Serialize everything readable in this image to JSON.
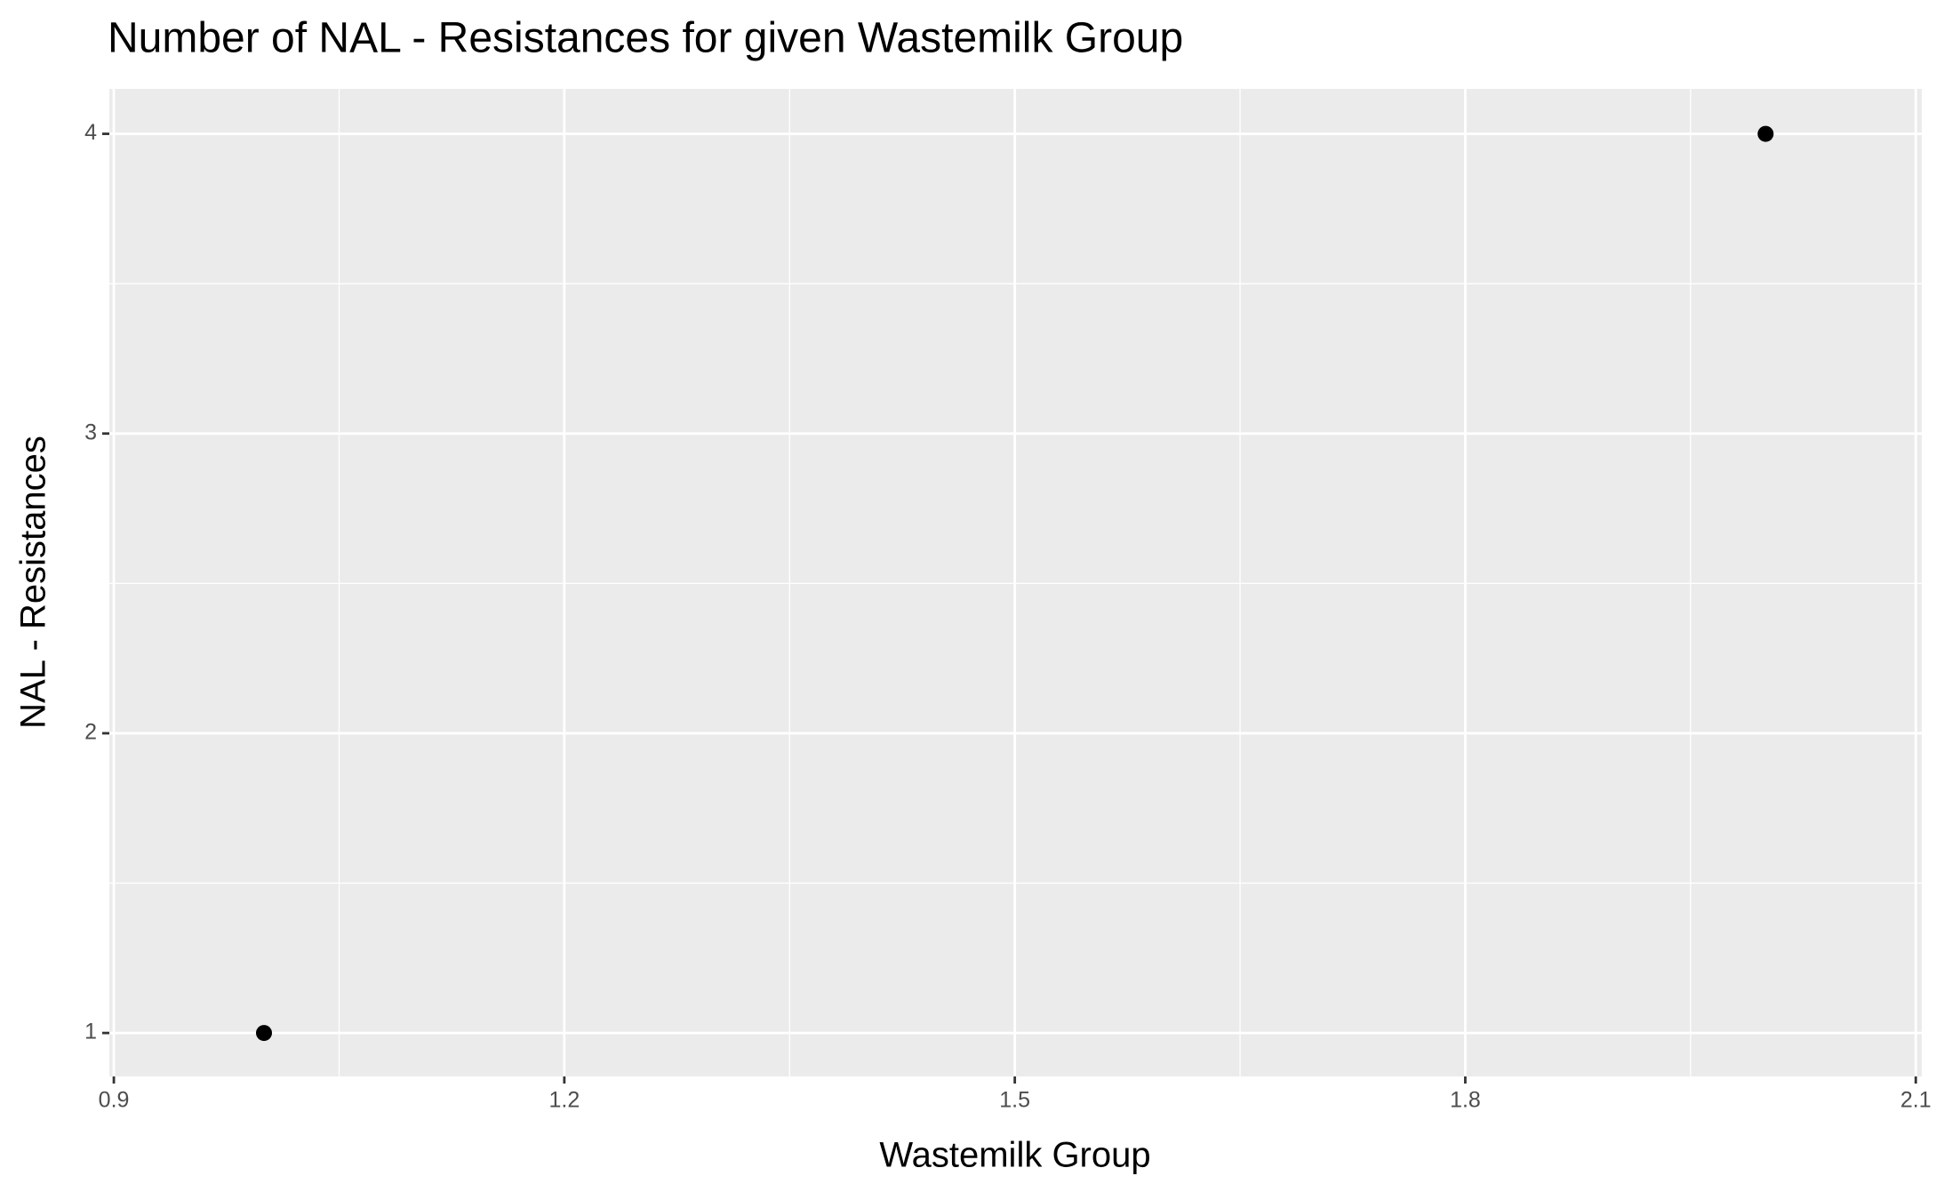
{
  "chart_data": {
    "type": "scatter",
    "title": "Number of NAL - Resistances for given Wastemilk Group",
    "x_label": "Wastemilk Group",
    "y_label": "NAL - Resistances",
    "x": [
      1,
      2
    ],
    "values": [
      1,
      4
    ],
    "color": "#000000",
    "xlim": [
      0.897,
      2.104
    ],
    "ylim": [
      0.855,
      4.15
    ],
    "xticks": [
      0.9,
      1.2,
      1.5,
      1.8,
      2.1
    ],
    "yticks": [
      1,
      2,
      3,
      4
    ],
    "x_minor_grid": [
      1.05,
      1.35,
      1.65,
      1.95
    ],
    "y_minor_grid": [
      1.5,
      2.5,
      3.5
    ],
    "grid": true
  }
}
